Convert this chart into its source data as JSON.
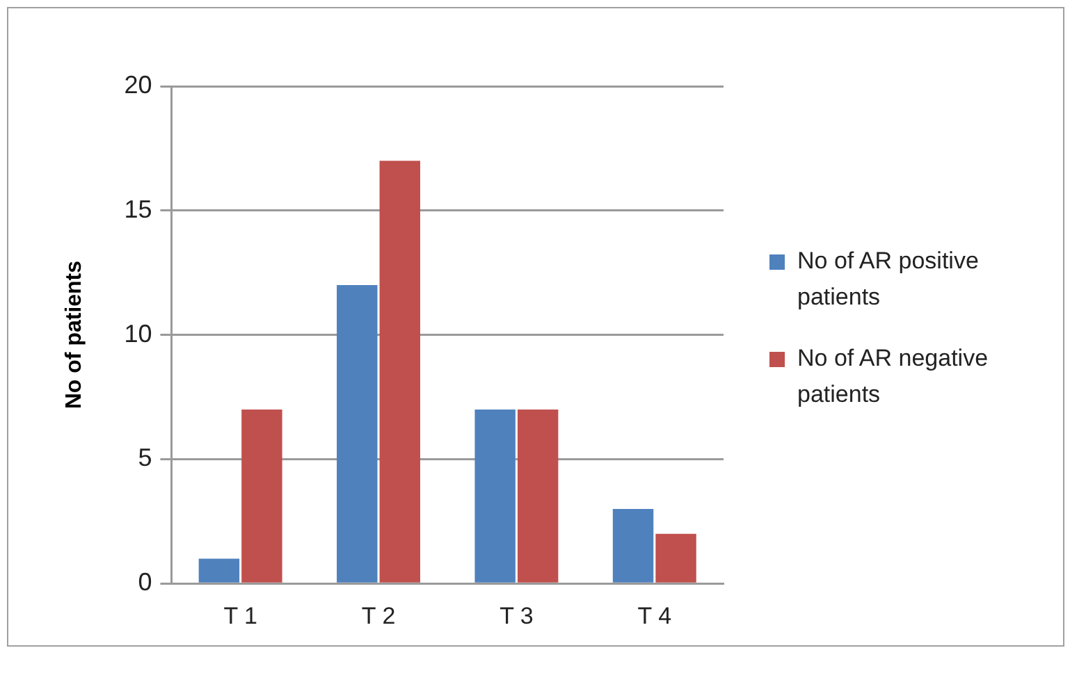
{
  "chart_data": {
    "type": "bar",
    "ylabel": "No of patients",
    "categories": [
      "T 1",
      "T 2",
      "T 3",
      "T 4"
    ],
    "series": [
      {
        "name": "No of AR positive patients",
        "color": "#4f81bd",
        "values": [
          1,
          12,
          7,
          3
        ]
      },
      {
        "name": "No of AR negative patients",
        "color": "#c0504d",
        "values": [
          7,
          17,
          7,
          2
        ]
      }
    ],
    "ylim": [
      0,
      20
    ],
    "yticks": [
      0,
      5,
      10,
      15,
      20
    ],
    "grid": "y",
    "legend": "right"
  }
}
